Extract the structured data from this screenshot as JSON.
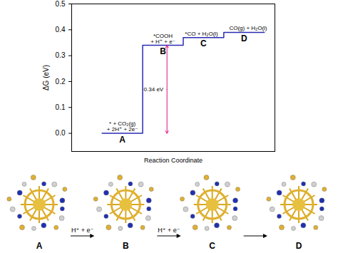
{
  "chart_data": {
    "type": "step",
    "x_label": "Reaction Coordinate",
    "y_label": "ΔG (eV)",
    "categories": [
      "A",
      "B",
      "C",
      "D"
    ],
    "values": [
      0,
      0.34,
      0.37,
      0.39
    ],
    "state_labels": [
      "* + CO₂(g)\n+ 2H⁺ + 2e⁻",
      "*COOH\n+ H⁺ + e⁻",
      "*CO + H₂O(l)",
      "CO(g) + H₂O(l)"
    ],
    "color": "#2a2ab5",
    "ylim": [
      -0.07,
      0.5
    ],
    "yticks": [
      {
        "value": 0,
        "label": "0.0"
      },
      {
        "value": 0.1,
        "label": "0.1"
      },
      {
        "value": 0.2,
        "label": "0.2"
      },
      {
        "value": 0.3,
        "label": "0.3"
      },
      {
        "value": 0.4,
        "label": "0.4"
      },
      {
        "value": 0.5,
        "label": "0.5"
      }
    ],
    "annotations": [
      {
        "text": "0.34 eV",
        "from": 0,
        "to": 0.34,
        "color": "#e0107f"
      }
    ],
    "tick_labels": "y"
  },
  "structures": {
    "labels": [
      "A",
      "B",
      "C",
      "D"
    ],
    "arrows": [
      "H⁺ + e⁻",
      "H⁺ + e⁻",
      null
    ]
  }
}
